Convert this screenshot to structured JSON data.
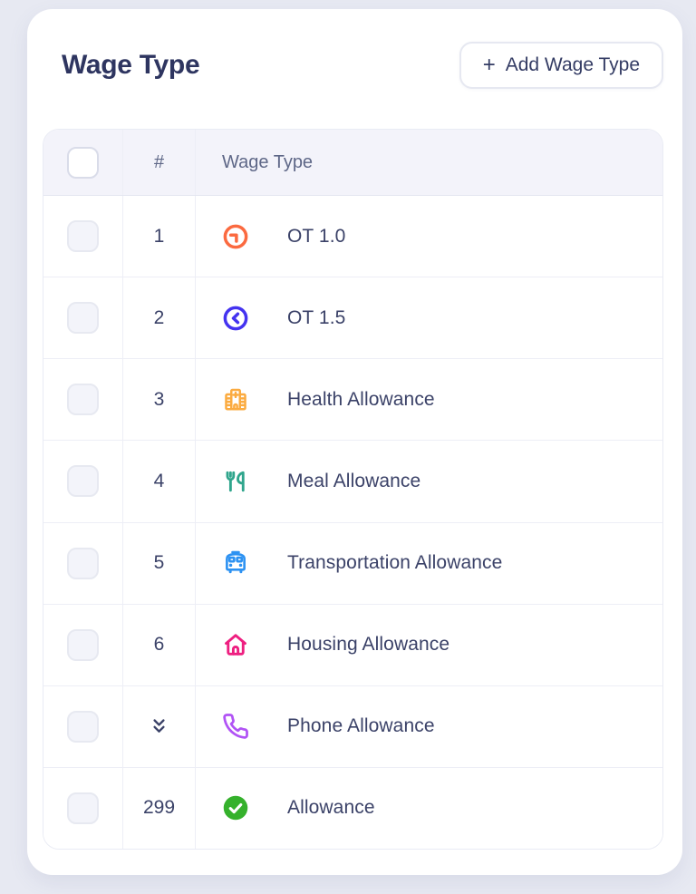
{
  "header": {
    "title": "Wage Type",
    "add_button": {
      "icon_glyph": "+",
      "label": "Add Wage Type"
    }
  },
  "table": {
    "columns": {
      "number": "#",
      "wage_type": "Wage Type"
    },
    "select_all_checked": false,
    "rows": [
      {
        "number": "1",
        "label": "OT 1.0",
        "icon": "clock-circle",
        "icon_color": "#fb6a40",
        "selected": false
      },
      {
        "number": "2",
        "label": "OT 1.5",
        "icon": "chevron-circle",
        "icon_color": "#4433f0",
        "selected": false
      },
      {
        "number": "3",
        "label": "Health Allowance",
        "icon": "hospital",
        "icon_color": "#fbab40",
        "selected": false
      },
      {
        "number": "4",
        "label": "Meal Allowance",
        "icon": "cutlery",
        "icon_color": "#2fa58c",
        "selected": false
      },
      {
        "number": "5",
        "label": "Transportation Allowance",
        "icon": "bus",
        "icon_color": "#2d92f2",
        "selected": false
      },
      {
        "number": "6",
        "label": "Housing Allowance",
        "icon": "house",
        "icon_color": "#ee1f80",
        "selected": false
      },
      {
        "number": "",
        "number_icon": "chevrons-down",
        "label": "Phone Allowance",
        "icon": "phone",
        "icon_color": "#b153f5",
        "selected": false
      },
      {
        "number": "299",
        "label": "Allowance",
        "icon": "check-circle",
        "icon_color": "#35b12c",
        "selected": false
      }
    ]
  },
  "colors": {
    "page_bg": "#e7e9f2",
    "card_bg": "#ffffff",
    "table_header_bg": "#f3f3fa",
    "title_text": "#2e3560",
    "header_text": "#5e6787",
    "row_text": "#3b4268",
    "border": "#edeef6"
  }
}
